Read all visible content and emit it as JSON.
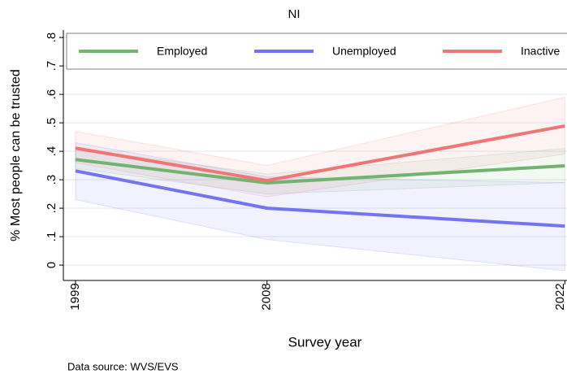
{
  "chart_data": {
    "type": "line",
    "title": "NI",
    "x": [
      1999,
      2008,
      2022
    ],
    "xlim": [
      1998.43,
      2022.1
    ],
    "xticks": [
      1999,
      2008,
      2022
    ],
    "ylim": [
      -0.054,
      0.826
    ],
    "yticks": [
      0,
      {
        "value": 0.1,
        "label": ".1"
      },
      {
        "value": 0.2,
        "label": ".2"
      },
      {
        "value": 0.3,
        "label": ".3"
      },
      {
        "value": 0.4,
        "label": ".4"
      },
      {
        "value": 0.5,
        "label": ".5"
      },
      {
        "value": 0.6,
        "label": ".6"
      },
      {
        "value": 0.7,
        "label": ".7"
      },
      {
        "value": 0.8,
        "label": ".8"
      }
    ],
    "grid": true,
    "x_label": "Survey year",
    "y_label": "% Most people can be trusted",
    "note": "Data source: WVS/EVS",
    "series": [
      {
        "name": "Employed",
        "color": "#72b370",
        "values": [
          0.371,
          0.289,
          0.349
        ],
        "lower": [
          0.34,
          0.25,
          0.29
        ],
        "upper": [
          0.41,
          0.32,
          0.41
        ]
      },
      {
        "name": "Unemployed",
        "color": "#7474f2",
        "values": [
          0.331,
          0.2,
          0.137
        ],
        "lower": [
          0.23,
          0.09,
          -0.02
        ],
        "upper": [
          0.43,
          0.31,
          0.29
        ]
      },
      {
        "name": "Inactive",
        "color": "#f07676",
        "values": [
          0.411,
          0.297,
          0.489
        ],
        "lower": [
          0.36,
          0.24,
          0.39
        ],
        "upper": [
          0.47,
          0.35,
          0.59
        ]
      }
    ]
  }
}
